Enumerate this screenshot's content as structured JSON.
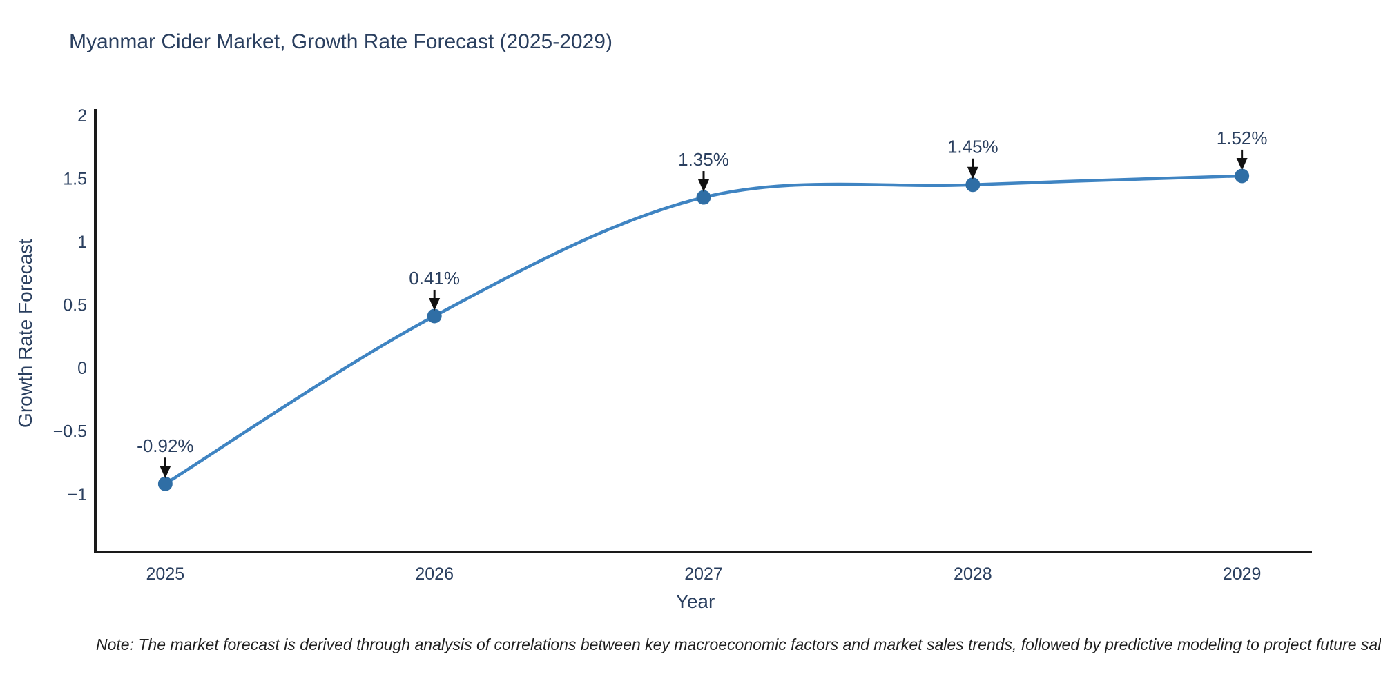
{
  "title": "Myanmar Cider Market, Growth Rate Forecast (2025-2029)",
  "note": "Note: The market forecast is derived through analysis of correlations between key macroeconomic factors and market sales trends, followed by predictive modeling to project future sales.",
  "chart_data": {
    "type": "line",
    "title": "Myanmar Cider Market, Growth Rate Forecast (2025-2029)",
    "xlabel": "Year",
    "ylabel": "Growth Rate Forecast",
    "x": [
      2025,
      2026,
      2027,
      2028,
      2029
    ],
    "series": [
      {
        "name": "Growth Rate Forecast",
        "values": [
          -0.92,
          0.41,
          1.35,
          1.45,
          1.52
        ]
      }
    ],
    "point_labels": [
      "-0.92%",
      "0.41%",
      "1.35%",
      "1.45%",
      "1.52%"
    ],
    "x_tick_labels": [
      "2025",
      "2026",
      "2027",
      "2028",
      "2029"
    ],
    "y_tick_values": [
      2,
      1.5,
      1,
      0.5,
      0,
      -0.5,
      -1
    ],
    "y_tick_labels": [
      "2",
      "1.5",
      "1",
      "0.5",
      "0",
      "−0.5",
      "−1"
    ],
    "xlim": [
      2024.74,
      2029.26
    ],
    "ylim": [
      -1.46,
      2.05
    ],
    "line_shape": "spline",
    "grid": false,
    "legend": "none",
    "colors": {
      "line": "#3f84c2",
      "marker": "#2f6ea5",
      "arrow": "#111111",
      "axis": "#1a1a1a",
      "tick_text": "#2a3f5f",
      "annotation_text": "#2a3f5f"
    }
  }
}
